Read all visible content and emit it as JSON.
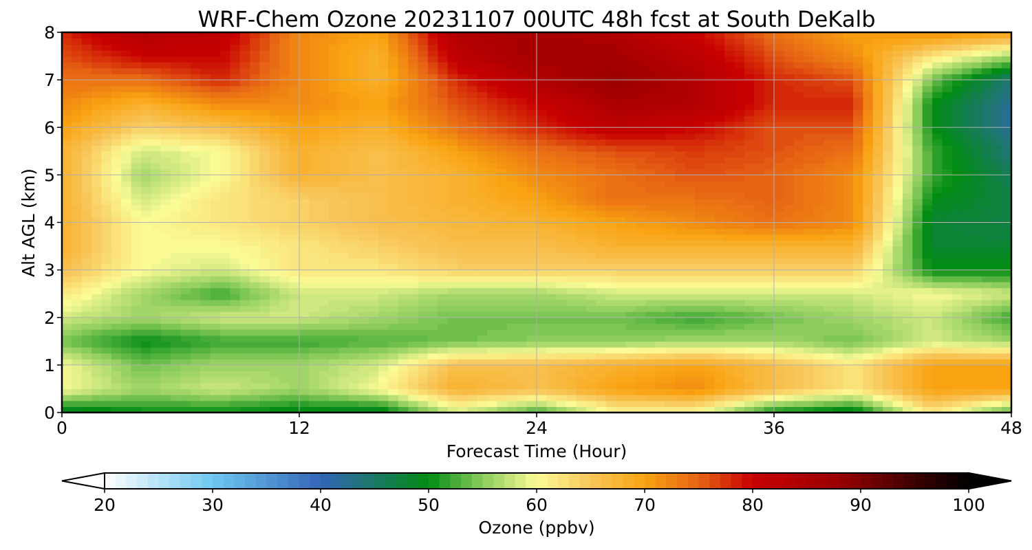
{
  "chart_data": {
    "type": "heatmap",
    "title": "WRF-Chem Ozone  20231107 00UTC 48h fcst at South DeKalb",
    "xlabel": "Forecast Time (Hour)",
    "ylabel": "Alt AGL (km)",
    "xlim": [
      0,
      48
    ],
    "ylim": [
      0,
      8
    ],
    "xticks": [
      "0",
      "12",
      "24",
      "36",
      "48"
    ],
    "yticks": [
      "0",
      "1",
      "2",
      "3",
      "4",
      "5",
      "6",
      "7",
      "8"
    ],
    "grid": true,
    "x": [
      0,
      4,
      8,
      12,
      16,
      20,
      24,
      28,
      32,
      36,
      40,
      44,
      48
    ],
    "y": [
      0,
      0.5,
      1,
      1.5,
      2,
      2.5,
      3,
      3.5,
      4,
      4.5,
      5,
      5.5,
      6,
      6.5,
      7,
      7.5,
      8
    ],
    "z": [
      [
        48,
        50,
        50,
        49,
        48,
        58,
        52,
        60,
        60,
        50,
        48,
        62,
        52
      ],
      [
        60,
        56,
        58,
        56,
        60,
        68,
        66,
        70,
        72,
        66,
        62,
        70,
        70
      ],
      [
        60,
        54,
        56,
        56,
        58,
        66,
        66,
        68,
        70,
        66,
        62,
        70,
        70
      ],
      [
        54,
        50,
        52,
        52,
        53,
        54,
        55,
        55,
        56,
        56,
        54,
        58,
        56
      ],
      [
        58,
        56,
        58,
        58,
        56,
        54,
        54,
        54,
        52,
        54,
        56,
        58,
        52
      ],
      [
        62,
        56,
        52,
        58,
        58,
        56,
        56,
        58,
        58,
        58,
        58,
        60,
        58
      ],
      [
        66,
        60,
        58,
        62,
        62,
        64,
        64,
        64,
        64,
        64,
        64,
        50,
        50
      ],
      [
        68,
        60,
        60,
        62,
        64,
        66,
        66,
        68,
        68,
        68,
        68,
        48,
        48
      ],
      [
        68,
        60,
        62,
        64,
        66,
        67,
        68,
        70,
        72,
        74,
        72,
        48,
        47
      ],
      [
        68,
        58,
        62,
        64,
        66,
        68,
        70,
        74,
        74,
        75,
        72,
        50,
        47
      ],
      [
        68,
        56,
        60,
        68,
        66,
        68,
        72,
        74,
        76,
        75,
        72,
        52,
        46
      ],
      [
        68,
        58,
        60,
        68,
        66,
        70,
        74,
        76,
        77,
        76,
        74,
        52,
        44
      ],
      [
        70,
        64,
        66,
        70,
        68,
        74,
        78,
        82,
        80,
        76,
        76,
        50,
        42
      ],
      [
        72,
        68,
        72,
        72,
        70,
        76,
        80,
        85,
        84,
        78,
        78,
        50,
        42
      ],
      [
        74,
        74,
        78,
        72,
        68,
        78,
        84,
        88,
        84,
        78,
        76,
        54,
        44
      ],
      [
        76,
        80,
        80,
        72,
        68,
        82,
        86,
        86,
        82,
        76,
        72,
        62,
        56
      ],
      [
        78,
        84,
        82,
        72,
        70,
        84,
        86,
        84,
        80,
        74,
        70,
        72,
        70
      ]
    ],
    "colorbar": {
      "label": "Ozone  (ppbv)",
      "ticks": [
        "20",
        "30",
        "40",
        "50",
        "60",
        "70",
        "80",
        "90",
        "100"
      ],
      "range": [
        20,
        100
      ],
      "extend": "both",
      "stops": [
        {
          "v": 20,
          "c": "#ffffff"
        },
        {
          "v": 30,
          "c": "#6ec8f0"
        },
        {
          "v": 40,
          "c": "#3465b8"
        },
        {
          "v": 50,
          "c": "#018c13"
        },
        {
          "v": 55,
          "c": "#8ccc5c"
        },
        {
          "v": 60,
          "c": "#fbfb96"
        },
        {
          "v": 65,
          "c": "#f8c65a"
        },
        {
          "v": 70,
          "c": "#f9a312"
        },
        {
          "v": 75,
          "c": "#e66414"
        },
        {
          "v": 80,
          "c": "#c80000"
        },
        {
          "v": 88,
          "c": "#9a0000"
        },
        {
          "v": 95,
          "c": "#3c0000"
        },
        {
          "v": 100,
          "c": "#000000"
        }
      ]
    }
  }
}
